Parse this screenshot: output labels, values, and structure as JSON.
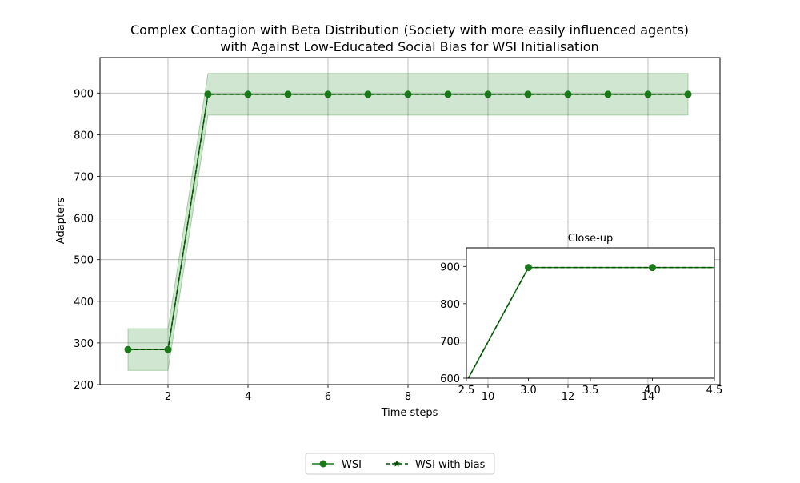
{
  "chart_data": {
    "type": "line",
    "title_line1": "Complex Contagion with Beta Distribution (Society with more easily influenced agents)",
    "title_line2": "with Against Low-Educated Social Bias for WSI Initialisation",
    "xlabel": "Time steps",
    "ylabel": "Adapters",
    "xlim": [
      0.3,
      15.8
    ],
    "ylim": [
      200,
      985
    ],
    "xticks": [
      2,
      4,
      6,
      8,
      10,
      12,
      14
    ],
    "yticks": [
      200,
      300,
      400,
      500,
      600,
      700,
      800,
      900
    ],
    "grid": true,
    "colors": {
      "wsi": "#1a7a1a",
      "bias": "#004d00",
      "band": "#2e8b2e"
    },
    "x": [
      1,
      2,
      3,
      4,
      5,
      6,
      7,
      8,
      9,
      10,
      11,
      12,
      13,
      14,
      15
    ],
    "series": [
      {
        "name": "WSI",
        "values": [
          284,
          284,
          897,
          897,
          897,
          897,
          897,
          897,
          897,
          897,
          897,
          897,
          897,
          897,
          897
        ],
        "marker": "circle",
        "linestyle": "solid"
      },
      {
        "name": "WSI with bias",
        "values": [
          284,
          284,
          897,
          897,
          897,
          897,
          897,
          897,
          897,
          897,
          897,
          897,
          897,
          897,
          897
        ],
        "marker": "star",
        "linestyle": "dashed"
      }
    ],
    "band": {
      "lower": [
        234,
        234,
        847,
        847,
        847,
        847,
        847,
        847,
        847,
        847,
        847,
        847,
        847,
        847,
        847
      ],
      "upper": [
        334,
        334,
        947,
        947,
        947,
        947,
        947,
        947,
        947,
        947,
        947,
        947,
        947,
        947,
        947
      ]
    },
    "legend": {
      "placement": "bottom-center"
    },
    "inset": {
      "title": "Close-up",
      "xlim": [
        2.5,
        4.5
      ],
      "ylim": [
        600,
        950
      ],
      "xticks": [
        2.5,
        3.0,
        3.5,
        4.0,
        4.5
      ],
      "xtick_labels": [
        "2.5",
        "3.0",
        "3.5",
        "4.0",
        "4.5"
      ],
      "yticks": [
        600,
        700,
        800,
        900
      ]
    }
  }
}
